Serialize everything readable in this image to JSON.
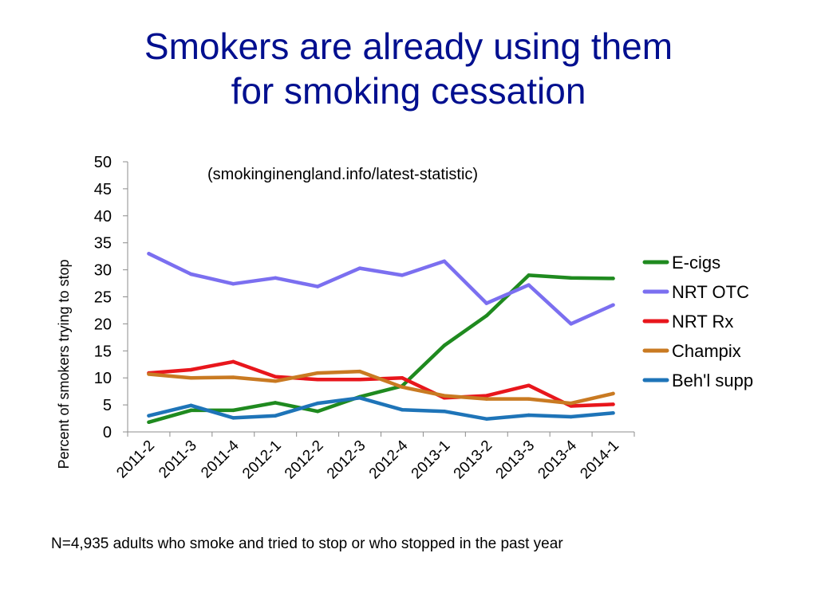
{
  "slide": {
    "title_line1": "Smokers are already using them",
    "title_line2": "for smoking cessation",
    "source": "(smokinginengland.info/latest-statistic)",
    "footnote": "N=4,935 adults who smoke and tried to stop or who stopped in the past year"
  },
  "chart_data": {
    "type": "line",
    "title": "",
    "xlabel": "",
    "ylabel": "Percent of smokers  trying to stop",
    "ylim": [
      0,
      50
    ],
    "yticks": [
      0,
      5,
      10,
      15,
      20,
      25,
      30,
      35,
      40,
      45,
      50
    ],
    "grid": false,
    "legend_position": "right",
    "categories": [
      "2011-2",
      "2011-3",
      "2011-4",
      "2012-1",
      "2012-2",
      "2012-3",
      "2012-4",
      "2013-1",
      "2013-2",
      "2013-3",
      "2013-4",
      "2014-1"
    ],
    "series": [
      {
        "name": "E-cigs",
        "color": "#1f8a1f",
        "values": [
          1.8,
          4.0,
          4.0,
          5.4,
          3.8,
          6.5,
          8.5,
          16.0,
          21.5,
          29.0,
          28.5,
          28.4
        ]
      },
      {
        "name": "NRT OTC",
        "color": "#7b6ff0",
        "values": [
          33.0,
          29.2,
          27.4,
          28.5,
          26.9,
          30.3,
          29.0,
          31.6,
          23.8,
          27.2,
          20.0,
          23.5
        ]
      },
      {
        "name": "NRT Rx",
        "color": "#e8161c",
        "values": [
          10.9,
          11.5,
          13.0,
          10.2,
          9.7,
          9.7,
          10.0,
          6.3,
          6.7,
          8.6,
          4.8,
          5.1
        ]
      },
      {
        "name": "Champix",
        "color": "#c97a22",
        "values": [
          10.7,
          10.0,
          10.1,
          9.4,
          10.9,
          11.2,
          8.3,
          6.7,
          6.1,
          6.1,
          5.3,
          7.1
        ]
      },
      {
        "name": "Beh'l supp",
        "color": "#1e74b8",
        "values": [
          3.0,
          4.9,
          2.6,
          3.0,
          5.3,
          6.3,
          4.1,
          3.8,
          2.4,
          3.1,
          2.8,
          3.5
        ]
      }
    ]
  }
}
